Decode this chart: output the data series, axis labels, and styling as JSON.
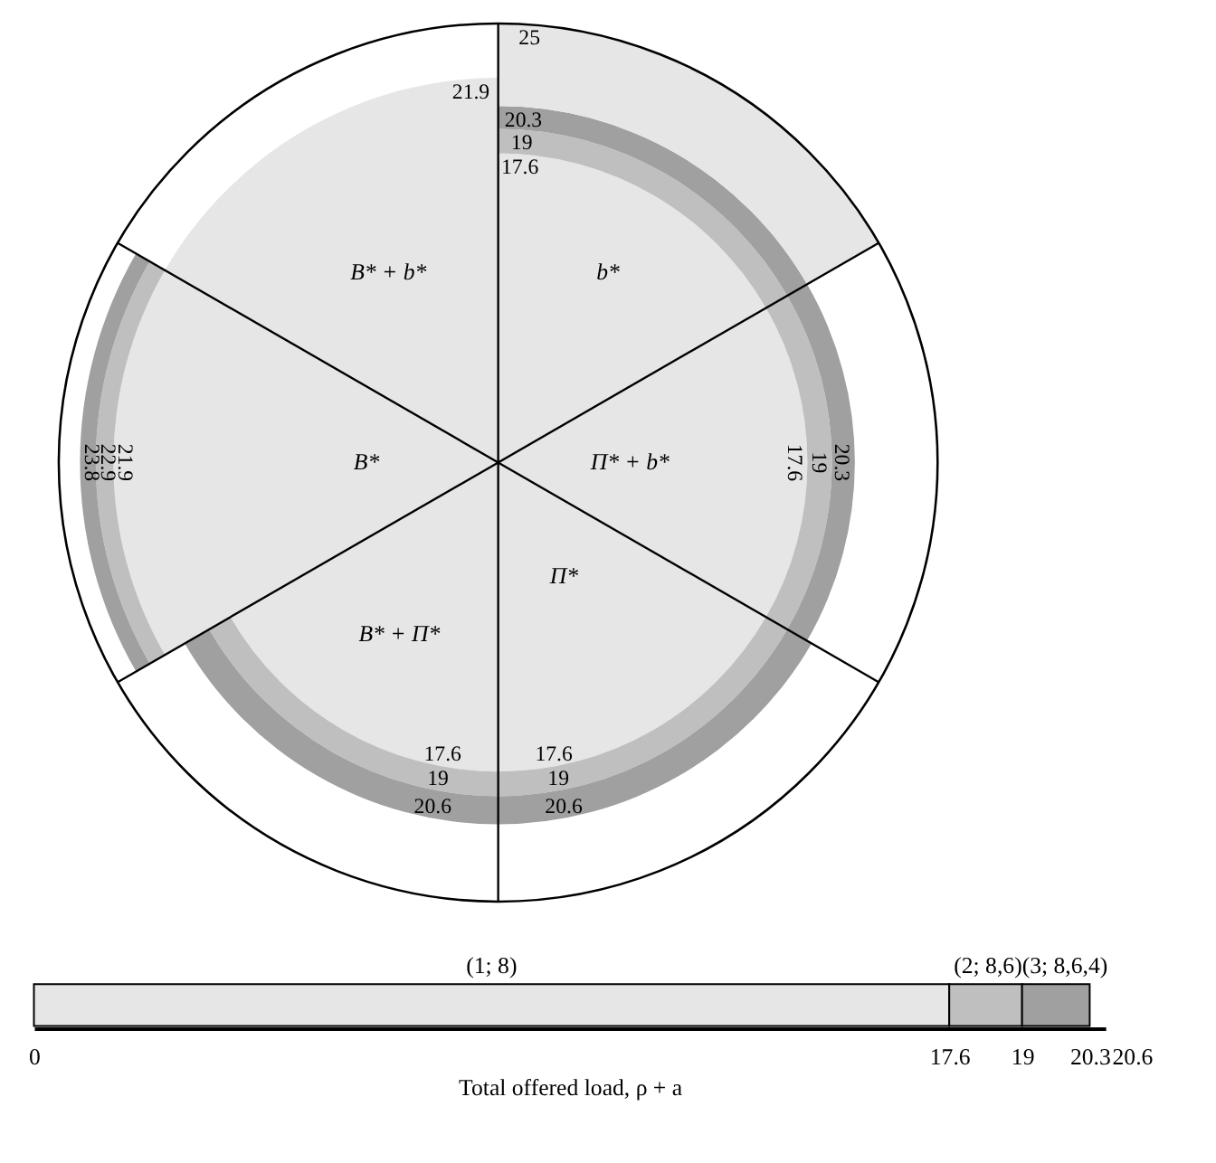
{
  "chart_data": [
    {
      "type": "other",
      "categories": [
        "b*",
        "Π* + b*",
        "Π*",
        "B* + Π*",
        "B*",
        "B* + b*"
      ],
      "data_labels": true,
      "series": [
        {
          "color": "#e6e6e6",
          "values": [
            17.6,
            17.6,
            17.6,
            17.6,
            21.9,
            21.9
          ]
        },
        {
          "color": "#bfbfbf",
          "values": [
            19,
            19,
            19,
            19,
            22.9,
            null
          ]
        },
        {
          "color": "#a0a0a0",
          "values": [
            20.3,
            20.3,
            20.6,
            20.6,
            23.8,
            null
          ]
        },
        {
          "color": "#e6e6e6",
          "values": [
            25,
            null,
            null,
            null,
            null,
            null
          ]
        }
      ]
    },
    {
      "type": "bar",
      "orientation": "horizontal",
      "stacked": true,
      "categories": [
        null
      ],
      "xlabel": "Total offered load, ρ + a",
      "xlim": [
        0,
        20.6
      ],
      "xticks": [
        0,
        17.6,
        19,
        20.3
      ],
      "tick_labels": "x",
      "annotations": [
        "20.6"
      ],
      "series": [
        {
          "name": "(1; 8)",
          "color": "#e6e6e6",
          "values": [
            17.6
          ]
        },
        {
          "name": "(2; 8,6)",
          "color": "#bfbfbf",
          "values": [
            1.4
          ]
        },
        {
          "name": "(3; 8,6,4)",
          "color": "#a0a0a0",
          "values": [
            1.3
          ]
        }
      ]
    }
  ]
}
